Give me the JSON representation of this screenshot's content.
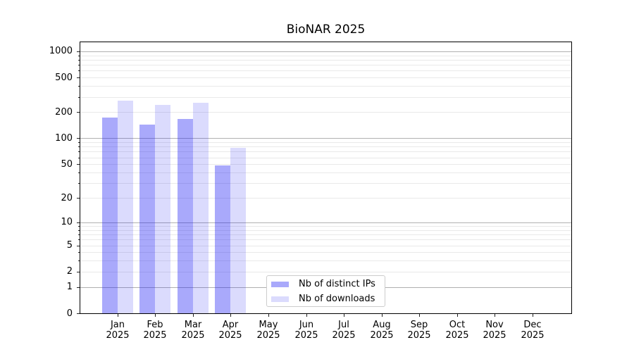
{
  "chart_data": {
    "type": "bar",
    "title": "BioNAR 2025",
    "categories": [
      {
        "month": "Jan",
        "year": "2025"
      },
      {
        "month": "Feb",
        "year": "2025"
      },
      {
        "month": "Mar",
        "year": "2025"
      },
      {
        "month": "Apr",
        "year": "2025"
      },
      {
        "month": "May",
        "year": "2025"
      },
      {
        "month": "Jun",
        "year": "2025"
      },
      {
        "month": "Jul",
        "year": "2025"
      },
      {
        "month": "Aug",
        "year": "2025"
      },
      {
        "month": "Sep",
        "year": "2025"
      },
      {
        "month": "Oct",
        "year": "2025"
      },
      {
        "month": "Nov",
        "year": "2025"
      },
      {
        "month": "Dec",
        "year": "2025"
      }
    ],
    "series": [
      {
        "name": "Nb of distinct IPs",
        "color": "rgba(30,30,245,0.38)",
        "values": [
          175,
          143,
          166,
          48,
          null,
          null,
          null,
          null,
          null,
          null,
          null,
          null
        ]
      },
      {
        "name": "Nb of downloads",
        "color": "rgba(30,30,245,0.16)",
        "values": [
          273,
          241,
          258,
          78,
          null,
          null,
          null,
          null,
          null,
          null,
          null,
          null
        ]
      }
    ],
    "y_axis": {
      "scale": "log1p",
      "tick_values": [
        0,
        1,
        2,
        5,
        10,
        20,
        50,
        100,
        200,
        500,
        1000
      ],
      "top_value": 1200
    },
    "grid": {
      "major_lines": [
        1,
        10,
        100,
        1000
      ],
      "minor_lines": [
        2,
        3,
        4,
        5,
        6,
        7,
        8,
        9,
        20,
        30,
        40,
        50,
        60,
        70,
        80,
        90,
        200,
        300,
        400,
        500,
        600,
        700,
        800,
        900
      ]
    },
    "legend_location": "lower center",
    "grid_on": true
  },
  "colors": {
    "spine": "#000000",
    "tick": "#222222",
    "major_grid": "#b0b0b0",
    "minor_grid": "#e9e9e9",
    "legend_border": "#cccccc",
    "text": "#000000"
  }
}
